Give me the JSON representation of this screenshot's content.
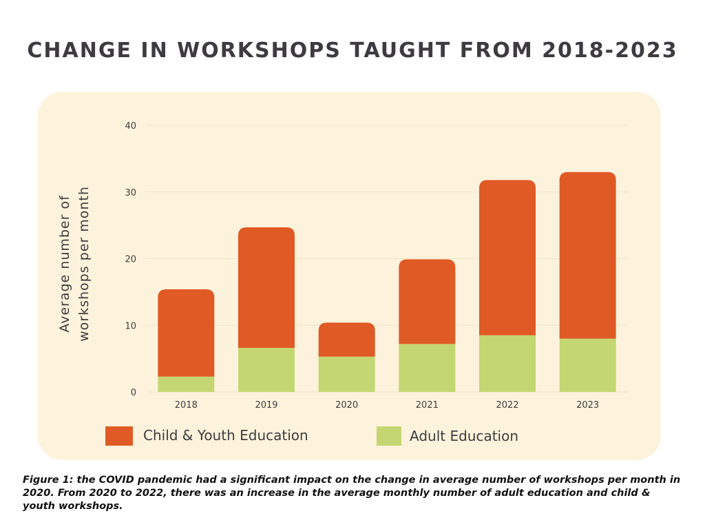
{
  "title": "CHANGE IN WORKSHOPS TAUGHT FROM 2018-2023",
  "caption": "Figure 1: the COVID pandemic had a significant impact on the change in average number of workshops per month in 2020. From 2020 to 2022, there was an increase in the average monthly number of adult education and child & youth workshops.",
  "colors": {
    "child_youth": "#e05a26",
    "adult": "#c3d672",
    "grid": "#f0e2c4",
    "panel": "#fdf3dc",
    "text": "#3d3b40"
  },
  "chart_data": {
    "type": "bar",
    "stacked": true,
    "categories": [
      "2018",
      "2019",
      "2020",
      "2021",
      "2022",
      "2023"
    ],
    "series": [
      {
        "name": "Adult Education",
        "values": [
          2.3,
          6.6,
          5.3,
          7.2,
          8.5,
          8.0
        ]
      },
      {
        "name": "Child & Youth Education",
        "values": [
          13.1,
          18.1,
          5.1,
          12.7,
          23.3,
          25.0
        ]
      }
    ],
    "ylabel_line1": "Average number of",
    "ylabel_line2": "workshops per month",
    "ylim": [
      0,
      40
    ],
    "yticks": [
      0,
      10,
      20,
      30,
      40
    ],
    "grid": true,
    "legend_position": "bottom"
  }
}
